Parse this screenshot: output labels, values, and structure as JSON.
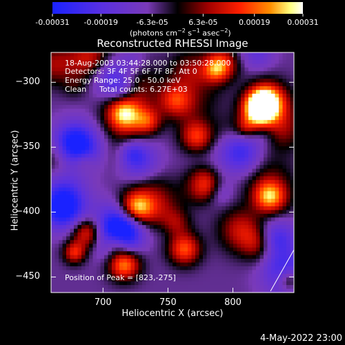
{
  "chart_data": {
    "type": "heatmap",
    "title": "Reconstructed RHESSI Image",
    "xlabel": "Heliocentric X (arcsec)",
    "ylabel": "Heliocentric Y (arcsec)",
    "xlim": [
      660,
      847
    ],
    "ylim": [
      -462,
      -277
    ],
    "x_ticks": [
      "700",
      "750",
      "800"
    ],
    "x_tick_values": [
      700,
      750,
      800
    ],
    "y_ticks": [
      "-300",
      "-350",
      "-400",
      "-450"
    ],
    "y_tick_values": [
      -300,
      -350,
      -400,
      -450
    ],
    "colorbar": {
      "ticks": [
        "-0.00031",
        "-0.00019",
        "-6.3e-05",
        "6.3e-05",
        "0.00019",
        "0.00031"
      ],
      "tick_values": [
        -0.00031,
        -0.00019,
        -6.3e-05,
        6.3e-05,
        0.00019,
        0.00031
      ],
      "range": [
        -0.00031,
        0.00031
      ],
      "unit": "(photons cm-2 s-1 asec-2)",
      "colors": [
        "#1a22ff",
        "#5a30e0",
        "#7a3ab8",
        "#000000",
        "#a00000",
        "#ff2000",
        "#ff9000",
        "#ffff80",
        "#ffffff"
      ]
    },
    "annotations": {
      "time": "18-Aug-2003 03:44:28.000 to 03:50:28.000",
      "detectors": "Detectors: 3F 4F 5F 6F 7F 8F, Att 0",
      "energy": "Energy Range: 25.0 - 50.0 keV",
      "clean_label": "Clean",
      "total_counts": "Total counts: 6.27E+03",
      "peak": "Position of Peak = [823,-275]"
    },
    "footer_date": "4-May-2022 23:00"
  }
}
